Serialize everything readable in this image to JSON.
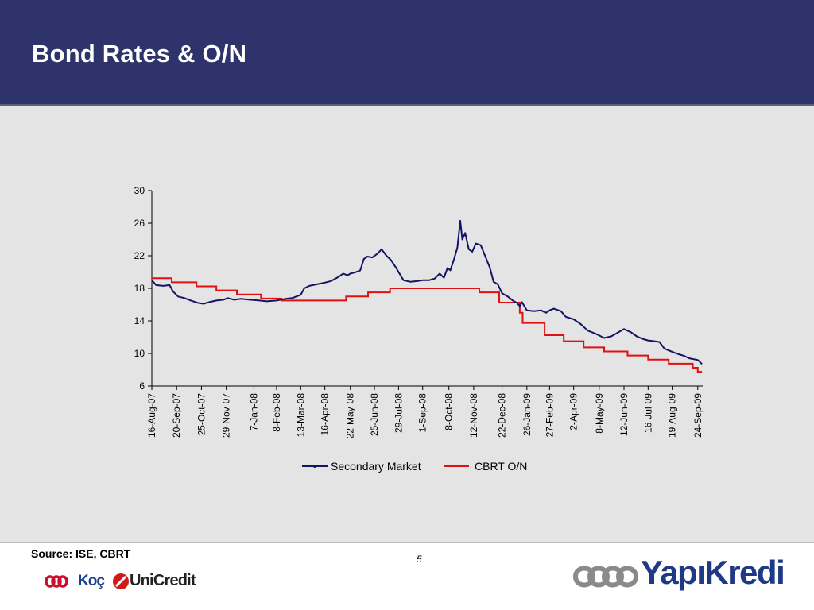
{
  "slide": {
    "title": "Bond Rates & O/N",
    "source": "Source: ISE, CBRT",
    "page_number": "5",
    "logos": {
      "koc": "Koç",
      "unicredit": "UniCredit",
      "yapikredi": "YapıKredi"
    }
  },
  "colors": {
    "header_bg": "#2e346b",
    "panel_bg": "#e4e4e4",
    "secondary": "#141464",
    "cbrt": "#e01010"
  },
  "chart_data": {
    "type": "line",
    "title": "",
    "xlabel": "",
    "ylabel": "",
    "ylim": [
      6,
      30
    ],
    "yticks": [
      6,
      10,
      14,
      18,
      22,
      26,
      30
    ],
    "xlim": [
      "2007-08-16",
      "2009-10-01"
    ],
    "grid": false,
    "legend": "bottom",
    "categories": [
      "16-Aug-07",
      "20-Sep-07",
      "25-Oct-07",
      "29-Nov-07",
      "7-Jan-08",
      "8-Feb-08",
      "13-Mar-08",
      "16-Apr-08",
      "22-May-08",
      "25-Jun-08",
      "29-Jul-08",
      "1-Sep-08",
      "8-Oct-08",
      "12-Nov-08",
      "22-Dec-08",
      "26-Jan-09",
      "27-Feb-09",
      "2-Apr-09",
      "8-May-09",
      "12-Jun-09",
      "16-Jul-09",
      "19-Aug-09",
      "24-Sep-09"
    ],
    "series": [
      {
        "name": "Secondary Market",
        "color": "#141464",
        "points": [
          [
            "2007-08-16",
            19.0
          ],
          [
            "2007-08-22",
            18.4
          ],
          [
            "2007-09-01",
            18.3
          ],
          [
            "2007-09-10",
            18.4
          ],
          [
            "2007-09-15",
            17.6
          ],
          [
            "2007-09-22",
            17.0
          ],
          [
            "2007-10-01",
            16.8
          ],
          [
            "2007-10-10",
            16.5
          ],
          [
            "2007-10-20",
            16.2
          ],
          [
            "2007-10-28",
            16.1
          ],
          [
            "2007-11-05",
            16.3
          ],
          [
            "2007-11-15",
            16.5
          ],
          [
            "2007-11-25",
            16.6
          ],
          [
            "2007-12-01",
            16.8
          ],
          [
            "2007-12-10",
            16.6
          ],
          [
            "2007-12-20",
            16.7
          ],
          [
            "2008-01-01",
            16.6
          ],
          [
            "2008-01-15",
            16.5
          ],
          [
            "2008-01-25",
            16.4
          ],
          [
            "2008-02-08",
            16.5
          ],
          [
            "2008-02-20",
            16.7
          ],
          [
            "2008-03-01",
            16.8
          ],
          [
            "2008-03-13",
            17.2
          ],
          [
            "2008-03-18",
            18.0
          ],
          [
            "2008-03-25",
            18.3
          ],
          [
            "2008-04-05",
            18.5
          ],
          [
            "2008-04-16",
            18.7
          ],
          [
            "2008-04-25",
            18.9
          ],
          [
            "2008-05-05",
            19.4
          ],
          [
            "2008-05-12",
            19.8
          ],
          [
            "2008-05-18",
            19.6
          ],
          [
            "2008-05-22",
            19.8
          ],
          [
            "2008-05-30",
            20.0
          ],
          [
            "2008-06-05",
            20.2
          ],
          [
            "2008-06-10",
            21.6
          ],
          [
            "2008-06-15",
            21.9
          ],
          [
            "2008-06-22",
            21.8
          ],
          [
            "2008-06-30",
            22.3
          ],
          [
            "2008-07-05",
            22.8
          ],
          [
            "2008-07-12",
            22.0
          ],
          [
            "2008-07-18",
            21.5
          ],
          [
            "2008-07-25",
            20.6
          ],
          [
            "2008-07-29",
            20.0
          ],
          [
            "2008-08-05",
            19.0
          ],
          [
            "2008-08-15",
            18.8
          ],
          [
            "2008-08-25",
            18.9
          ],
          [
            "2008-09-01",
            19.0
          ],
          [
            "2008-09-10",
            19.0
          ],
          [
            "2008-09-18",
            19.2
          ],
          [
            "2008-09-25",
            19.8
          ],
          [
            "2008-10-01",
            19.3
          ],
          [
            "2008-10-06",
            20.5
          ],
          [
            "2008-10-10",
            20.2
          ],
          [
            "2008-10-15",
            21.5
          ],
          [
            "2008-10-20",
            23.0
          ],
          [
            "2008-10-24",
            26.3
          ],
          [
            "2008-10-27",
            24.0
          ],
          [
            "2008-10-31",
            24.8
          ],
          [
            "2008-11-05",
            22.8
          ],
          [
            "2008-11-10",
            22.5
          ],
          [
            "2008-11-15",
            23.5
          ],
          [
            "2008-11-22",
            23.3
          ],
          [
            "2008-11-28",
            22.0
          ],
          [
            "2008-12-05",
            20.5
          ],
          [
            "2008-12-10",
            18.8
          ],
          [
            "2008-12-16",
            18.5
          ],
          [
            "2008-12-22",
            17.4
          ],
          [
            "2008-12-30",
            17.0
          ],
          [
            "2009-01-06",
            16.5
          ],
          [
            "2009-01-12",
            16.2
          ],
          [
            "2009-01-16",
            15.8
          ],
          [
            "2009-01-19",
            16.3
          ],
          [
            "2009-01-26",
            15.3
          ],
          [
            "2009-02-05",
            15.2
          ],
          [
            "2009-02-15",
            15.3
          ],
          [
            "2009-02-22",
            15.0
          ],
          [
            "2009-02-27",
            15.3
          ],
          [
            "2009-03-05",
            15.5
          ],
          [
            "2009-03-15",
            15.2
          ],
          [
            "2009-03-22",
            14.5
          ],
          [
            "2009-04-02",
            14.2
          ],
          [
            "2009-04-12",
            13.6
          ],
          [
            "2009-04-22",
            12.8
          ],
          [
            "2009-05-01",
            12.5
          ],
          [
            "2009-05-08",
            12.2
          ],
          [
            "2009-05-15",
            11.9
          ],
          [
            "2009-05-25",
            12.1
          ],
          [
            "2009-06-02",
            12.5
          ],
          [
            "2009-06-12",
            13.0
          ],
          [
            "2009-06-22",
            12.6
          ],
          [
            "2009-06-30",
            12.1
          ],
          [
            "2009-07-08",
            11.8
          ],
          [
            "2009-07-16",
            11.6
          ],
          [
            "2009-07-25",
            11.5
          ],
          [
            "2009-08-01",
            11.4
          ],
          [
            "2009-08-08",
            10.6
          ],
          [
            "2009-08-19",
            10.2
          ],
          [
            "2009-08-28",
            9.9
          ],
          [
            "2009-09-05",
            9.7
          ],
          [
            "2009-09-12",
            9.4
          ],
          [
            "2009-09-24",
            9.2
          ],
          [
            "2009-09-30",
            8.7
          ]
        ]
      },
      {
        "name": "CBRT O/N",
        "color": "#e01010",
        "steps": [
          [
            "2007-08-16",
            19.25
          ],
          [
            "2007-09-13",
            18.75
          ],
          [
            "2007-10-18",
            18.25
          ],
          [
            "2007-11-15",
            17.75
          ],
          [
            "2007-12-14",
            17.25
          ],
          [
            "2008-01-17",
            16.75
          ],
          [
            "2008-02-15",
            16.5
          ],
          [
            "2008-05-16",
            17.0
          ],
          [
            "2008-06-16",
            17.5
          ],
          [
            "2008-07-17",
            18.0
          ],
          [
            "2008-11-20",
            17.5
          ],
          [
            "2008-12-18",
            16.25
          ],
          [
            "2009-01-16",
            15.0
          ],
          [
            "2009-01-20",
            13.75
          ],
          [
            "2009-02-20",
            12.25
          ],
          [
            "2009-03-19",
            11.5
          ],
          [
            "2009-04-16",
            10.75
          ],
          [
            "2009-05-15",
            10.25
          ],
          [
            "2009-06-17",
            9.75
          ],
          [
            "2009-07-16",
            9.25
          ],
          [
            "2009-08-14",
            8.75
          ],
          [
            "2009-09-17",
            8.25
          ],
          [
            "2009-09-24",
            7.75
          ],
          [
            "2009-09-30",
            7.75
          ]
        ]
      }
    ]
  }
}
